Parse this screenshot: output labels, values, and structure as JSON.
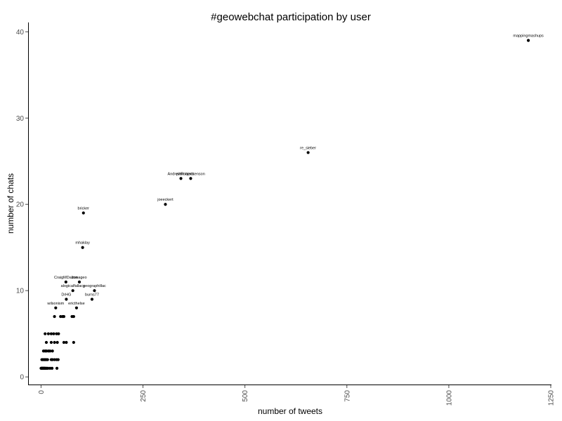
{
  "chart_data": {
    "type": "scatter",
    "title": "#geowebchat participation by user",
    "xlabel": "number of tweets",
    "ylabel": "number of chats",
    "xlim": [
      -30,
      1250
    ],
    "ylim": [
      -0.8,
      41
    ],
    "x_ticks": [
      0,
      250,
      500,
      750,
      1000,
      1250
    ],
    "y_ticks": [
      0,
      10,
      20,
      30,
      40
    ],
    "grid": false,
    "points": [
      {
        "x": 1195,
        "y": 39,
        "label": "mappingmashups"
      },
      {
        "x": 655,
        "y": 26,
        "label": "re_sieber"
      },
      {
        "x": 343,
        "y": 23,
        "label": "AndrewRoberts"
      },
      {
        "x": 367,
        "y": 23,
        "label": "pilsmajackenson"
      },
      {
        "x": 305,
        "y": 20,
        "label": "joeeckert"
      },
      {
        "x": 104,
        "y": 19,
        "label": "bricker"
      },
      {
        "x": 102,
        "y": 15,
        "label": "mhaklay"
      },
      {
        "x": 61,
        "y": 11,
        "label": "CraigMDalton"
      },
      {
        "x": 94,
        "y": 11,
        "label": "zonageo"
      },
      {
        "x": 78,
        "y": 10,
        "label": "alogicalfallacy"
      },
      {
        "x": 131,
        "y": 10,
        "label": "geographillac"
      },
      {
        "x": 62,
        "y": 9,
        "label": "DrHG"
      },
      {
        "x": 125,
        "y": 9,
        "label": "burns77"
      },
      {
        "x": 36,
        "y": 8,
        "label": "wilsonism"
      },
      {
        "x": 87,
        "y": 8,
        "label": "ericthelse"
      },
      {
        "x": 33,
        "y": 7
      },
      {
        "x": 48,
        "y": 7
      },
      {
        "x": 53,
        "y": 7
      },
      {
        "x": 56,
        "y": 7
      },
      {
        "x": 76,
        "y": 7
      },
      {
        "x": 80,
        "y": 7
      },
      {
        "x": 10,
        "y": 5
      },
      {
        "x": 18,
        "y": 5
      },
      {
        "x": 25,
        "y": 5
      },
      {
        "x": 31,
        "y": 5
      },
      {
        "x": 38,
        "y": 5
      },
      {
        "x": 43,
        "y": 5
      },
      {
        "x": 13,
        "y": 4
      },
      {
        "x": 25,
        "y": 4
      },
      {
        "x": 33,
        "y": 4
      },
      {
        "x": 40,
        "y": 4
      },
      {
        "x": 56,
        "y": 4
      },
      {
        "x": 62,
        "y": 4
      },
      {
        "x": 80,
        "y": 4
      },
      {
        "x": 6,
        "y": 3
      },
      {
        "x": 10,
        "y": 3
      },
      {
        "x": 13,
        "y": 3
      },
      {
        "x": 18,
        "y": 3
      },
      {
        "x": 22,
        "y": 3
      },
      {
        "x": 28,
        "y": 3
      },
      {
        "x": 2,
        "y": 2
      },
      {
        "x": 4,
        "y": 2
      },
      {
        "x": 7,
        "y": 2
      },
      {
        "x": 9,
        "y": 2
      },
      {
        "x": 11,
        "y": 2
      },
      {
        "x": 13,
        "y": 2
      },
      {
        "x": 16,
        "y": 2
      },
      {
        "x": 25,
        "y": 2
      },
      {
        "x": 28,
        "y": 2
      },
      {
        "x": 33,
        "y": 2
      },
      {
        "x": 38,
        "y": 2
      },
      {
        "x": 42,
        "y": 2
      },
      {
        "x": 0,
        "y": 1
      },
      {
        "x": 1,
        "y": 1
      },
      {
        "x": 2,
        "y": 1
      },
      {
        "x": 3,
        "y": 1
      },
      {
        "x": 4,
        "y": 1
      },
      {
        "x": 5,
        "y": 1
      },
      {
        "x": 6,
        "y": 1
      },
      {
        "x": 7,
        "y": 1
      },
      {
        "x": 8,
        "y": 1
      },
      {
        "x": 9,
        "y": 1
      },
      {
        "x": 10,
        "y": 1
      },
      {
        "x": 12,
        "y": 1
      },
      {
        "x": 14,
        "y": 1
      },
      {
        "x": 17,
        "y": 1
      },
      {
        "x": 22,
        "y": 1
      },
      {
        "x": 27,
        "y": 1
      },
      {
        "x": 39,
        "y": 1
      }
    ]
  }
}
